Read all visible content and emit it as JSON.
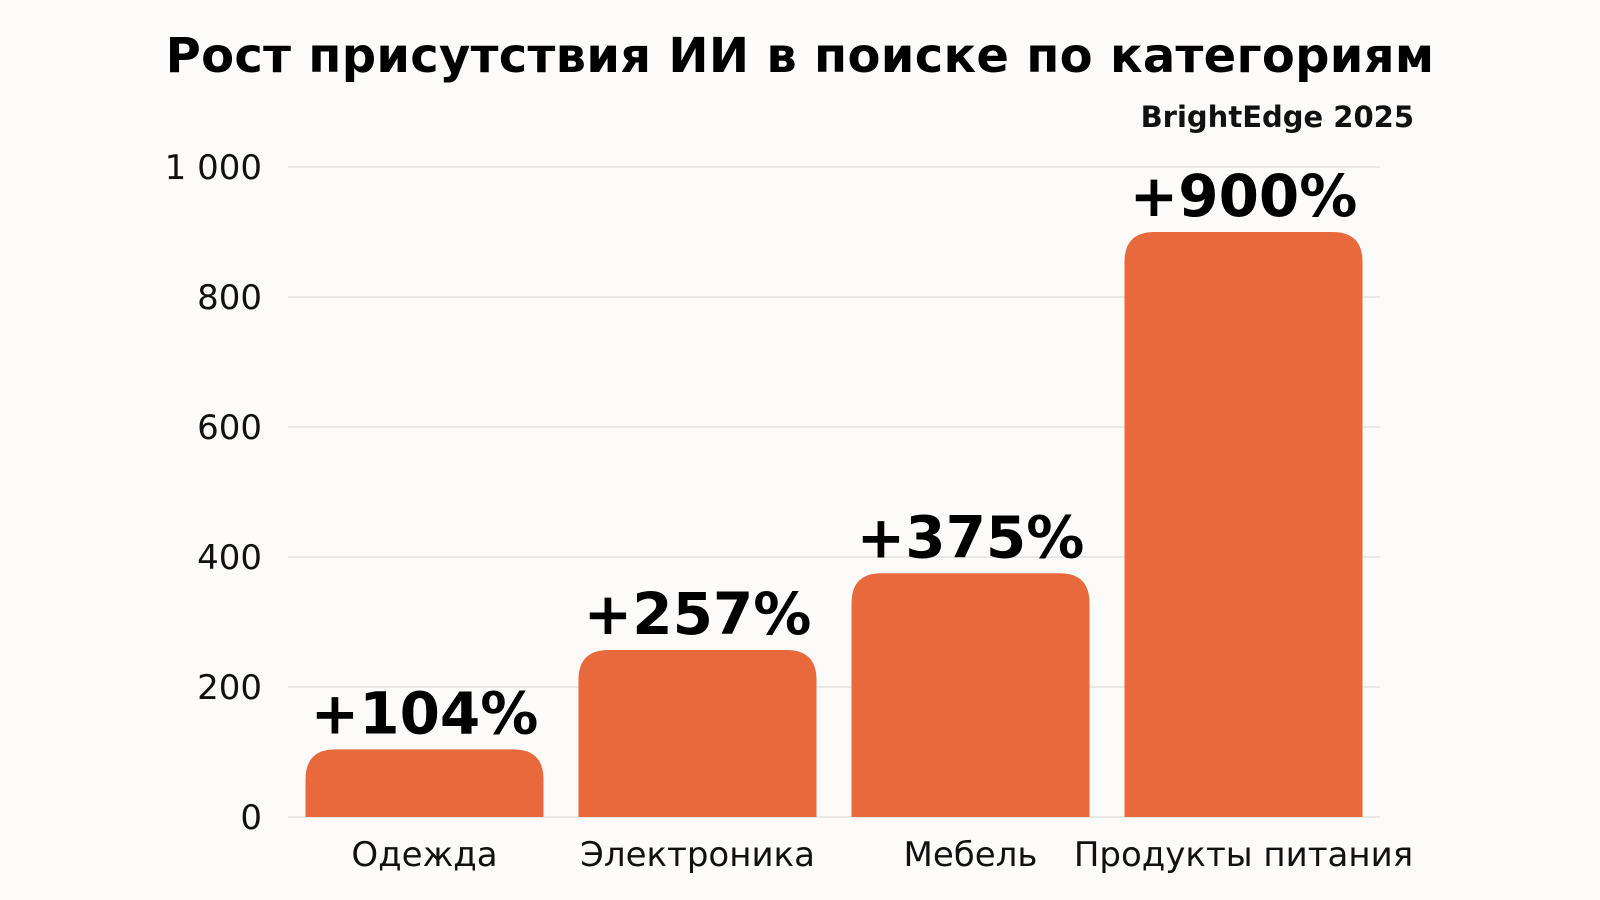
{
  "chart_data": {
    "type": "bar",
    "title": "Рост присутствия ИИ в поиске по категориям",
    "subtitle": "BrightEdge 2025",
    "categories": [
      "Одежда",
      "Электроника",
      "Мебель",
      "Продукты питания"
    ],
    "values": [
      104,
      257,
      375,
      900
    ],
    "data_labels": [
      "+104%",
      "+257%",
      "+375%",
      "+900%"
    ],
    "y_ticks": [
      0,
      200,
      400,
      600,
      800,
      1000
    ],
    "y_tick_labels": [
      "0",
      "200",
      "400",
      "600",
      "800",
      "1 000"
    ],
    "ylim": [
      0,
      1000
    ],
    "xlabel": "",
    "ylabel": "",
    "grid": true,
    "legend": "none",
    "bar_color": "#e8693b",
    "grid_color": "#dcdcdc"
  }
}
